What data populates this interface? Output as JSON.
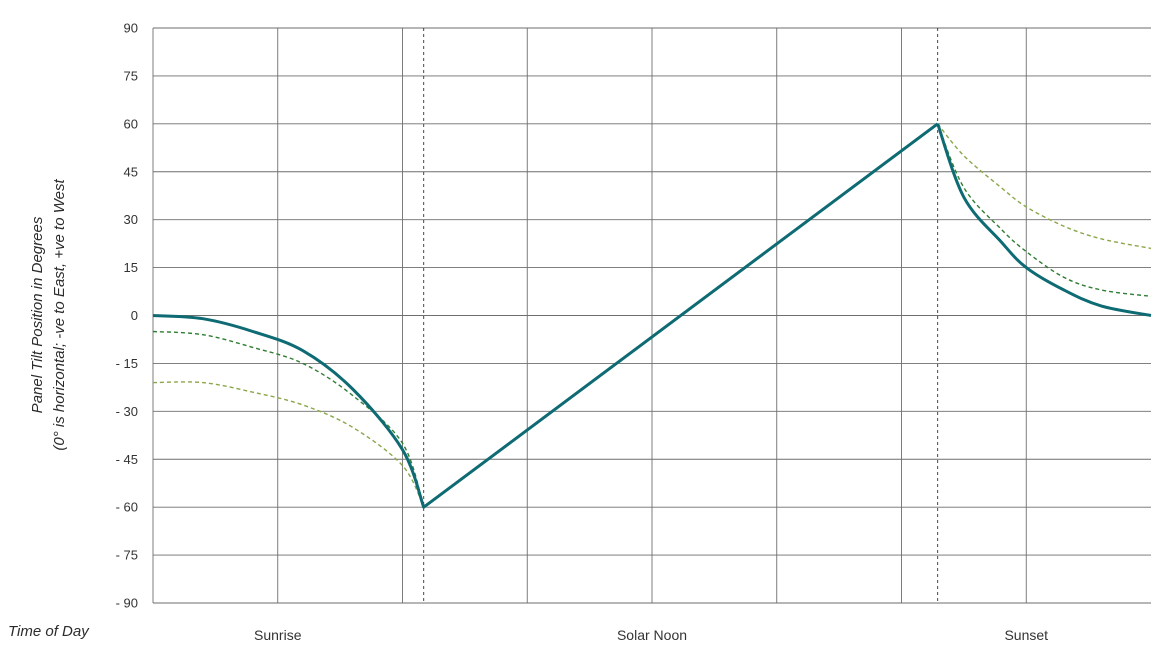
{
  "chart_data": {
    "type": "line",
    "xlabel": "Time of Day",
    "ylabel_line1": "Panel Tilt Position in Degrees",
    "ylabel_line2": "(0° is horizontal; -ve to East, +ve to West",
    "ylim": [
      -90,
      90
    ],
    "y_ticks": [
      90,
      75,
      60,
      45,
      30,
      15,
      0,
      -15,
      -30,
      -45,
      -60,
      -75,
      -90
    ],
    "y_tick_labels": [
      "90",
      "75",
      "60",
      "45",
      "30",
      "15",
      "0",
      "- 15",
      "- 30",
      "- 45",
      "- 60",
      "- 75",
      "- 90"
    ],
    "xlim": [
      0,
      8
    ],
    "x_tick_labels": [
      {
        "x": 1,
        "label": "Sunrise"
      },
      {
        "x": 4,
        "label": "Solar Noon"
      },
      {
        "x": 7,
        "label": "Sunset"
      }
    ],
    "vertical_gridlines": [
      1,
      2,
      3,
      4,
      5,
      6,
      7
    ],
    "vertical_dashed_lines": [
      2.17,
      6.29
    ],
    "grid": true,
    "series": [
      {
        "style": "solid",
        "color": "#0e6b73",
        "x": [
          0,
          0.4,
          0.8,
          1.2,
          1.6,
          2.0,
          2.17,
          6.29,
          6.5,
          6.8,
          7.0,
          7.3,
          7.6,
          8.0
        ],
        "y": [
          0,
          -1,
          -5,
          -11,
          -23,
          -42,
          -60,
          60,
          37,
          23,
          15,
          8,
          3,
          0
        ]
      },
      {
        "style": "dashed",
        "color": "#2f7d32",
        "x": [
          0,
          0.4,
          0.8,
          1.2,
          1.6,
          2.0,
          2.17,
          6.29,
          6.5,
          6.8,
          7.0,
          7.3,
          7.6,
          8.0
        ],
        "y": [
          -5,
          -6,
          -10,
          -15,
          -25,
          -40,
          -60,
          60,
          40,
          27,
          20,
          12,
          8,
          6
        ]
      },
      {
        "style": "dashed",
        "color": "#8aa648",
        "x": [
          0,
          0.4,
          0.8,
          1.2,
          1.6,
          2.0,
          2.17,
          6.29,
          6.5,
          6.8,
          7.0,
          7.3,
          7.6,
          8.0
        ],
        "y": [
          -21,
          -21,
          -24,
          -28,
          -35,
          -47,
          -60,
          60,
          50,
          40,
          34,
          28,
          24,
          21
        ]
      }
    ]
  }
}
